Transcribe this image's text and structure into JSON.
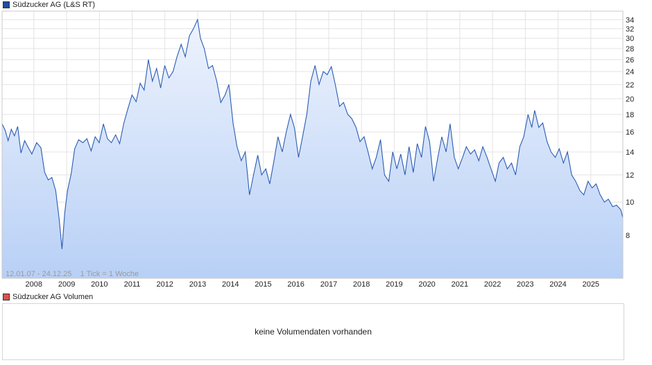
{
  "legend": {
    "price_label": "Südzucker AG (L&S RT)",
    "price_color": "#1f4e9c",
    "volume_label": "Südzucker AG Volumen",
    "volume_color": "#d9534f"
  },
  "info_text": "12.01.07 - 24.12.25    1 Tick = 1 Woche",
  "volume_message": "keine Volumendaten vorhanden",
  "chart_data": {
    "type": "area",
    "y_scale": "log",
    "ylim": [
      6.0,
      36.0
    ],
    "yticks": [
      8,
      10,
      12,
      14,
      16,
      18,
      20,
      22,
      24,
      26,
      28,
      30,
      32,
      34
    ],
    "xlim": [
      "2007-01-12",
      "2025-12-24"
    ],
    "xtick_labels": [
      "2008",
      "2009",
      "2010",
      "2011",
      "2012",
      "2013",
      "2014",
      "2015",
      "2016",
      "2017",
      "2018",
      "2019",
      "2020",
      "2021",
      "2022",
      "2023",
      "2024",
      "2025"
    ],
    "grid": true,
    "line_color": "#2a5cb4",
    "fill_top_color": "#eef3fd",
    "fill_bottom_color": "#b8d0f6",
    "series": [
      {
        "points": [
          [
            "2007-01-12",
            16.9
          ],
          [
            "2007-02-15",
            16.2
          ],
          [
            "2007-03-20",
            15.1
          ],
          [
            "2007-04-25",
            16.3
          ],
          [
            "2007-05-30",
            15.6
          ],
          [
            "2007-07-05",
            16.6
          ],
          [
            "2007-08-10",
            13.9
          ],
          [
            "2007-09-20",
            15.1
          ],
          [
            "2007-11-01",
            14.4
          ],
          [
            "2007-12-10",
            13.8
          ],
          [
            "2008-02-01",
            14.9
          ],
          [
            "2008-03-20",
            14.4
          ],
          [
            "2008-05-01",
            12.2
          ],
          [
            "2008-06-10",
            11.6
          ],
          [
            "2008-07-20",
            11.8
          ],
          [
            "2008-09-01",
            10.8
          ],
          [
            "2008-10-10",
            8.9
          ],
          [
            "2008-11-10",
            7.3
          ],
          [
            "2008-12-10",
            9.3
          ],
          [
            "2009-01-10",
            10.8
          ],
          [
            "2009-02-20",
            12.1
          ],
          [
            "2009-04-01",
            14.3
          ],
          [
            "2009-05-15",
            15.2
          ],
          [
            "2009-07-01",
            14.9
          ],
          [
            "2009-08-15",
            15.3
          ],
          [
            "2009-10-01",
            14.1
          ],
          [
            "2009-11-15",
            15.5
          ],
          [
            "2009-12-30",
            14.9
          ],
          [
            "2010-02-15",
            16.9
          ],
          [
            "2010-04-01",
            15.3
          ],
          [
            "2010-05-15",
            14.9
          ],
          [
            "2010-07-01",
            15.7
          ],
          [
            "2010-08-15",
            14.8
          ],
          [
            "2010-10-01",
            17.0
          ],
          [
            "2010-11-15",
            18.7
          ],
          [
            "2010-12-30",
            20.5
          ],
          [
            "2011-02-15",
            19.6
          ],
          [
            "2011-04-01",
            22.2
          ],
          [
            "2011-05-15",
            21.2
          ],
          [
            "2011-07-01",
            26.0
          ],
          [
            "2011-08-15",
            22.5
          ],
          [
            "2011-10-01",
            24.5
          ],
          [
            "2011-11-15",
            21.5
          ],
          [
            "2011-12-30",
            25.0
          ],
          [
            "2012-02-15",
            23.0
          ],
          [
            "2012-04-01",
            24.0
          ],
          [
            "2012-05-15",
            26.5
          ],
          [
            "2012-07-01",
            28.8
          ],
          [
            "2012-08-15",
            26.5
          ],
          [
            "2012-10-01",
            30.5
          ],
          [
            "2012-11-15",
            32.0
          ],
          [
            "2012-12-30",
            34.0
          ],
          [
            "2013-02-01",
            30.0
          ],
          [
            "2013-03-15",
            28.0
          ],
          [
            "2013-05-01",
            24.5
          ],
          [
            "2013-06-15",
            25.0
          ],
          [
            "2013-08-01",
            22.5
          ],
          [
            "2013-09-15",
            19.5
          ],
          [
            "2013-11-01",
            20.5
          ],
          [
            "2013-12-15",
            22.0
          ],
          [
            "2014-01-30",
            17.0
          ],
          [
            "2014-03-15",
            14.5
          ],
          [
            "2014-05-01",
            13.2
          ],
          [
            "2014-06-15",
            14.0
          ],
          [
            "2014-08-01",
            10.5
          ],
          [
            "2014-09-15",
            12.0
          ],
          [
            "2014-11-01",
            13.7
          ],
          [
            "2014-12-15",
            12.0
          ],
          [
            "2015-01-30",
            12.5
          ],
          [
            "2015-03-15",
            11.3
          ],
          [
            "2015-05-01",
            13.2
          ],
          [
            "2015-06-15",
            15.5
          ],
          [
            "2015-08-01",
            14.0
          ],
          [
            "2015-09-15",
            16.0
          ],
          [
            "2015-11-01",
            18.0
          ],
          [
            "2015-12-15",
            16.5
          ],
          [
            "2016-01-30",
            13.5
          ],
          [
            "2016-03-15",
            15.5
          ],
          [
            "2016-05-01",
            18.0
          ],
          [
            "2016-06-15",
            22.5
          ],
          [
            "2016-08-01",
            25.0
          ],
          [
            "2016-09-15",
            22.0
          ],
          [
            "2016-11-01",
            24.0
          ],
          [
            "2016-12-15",
            23.5
          ],
          [
            "2017-01-30",
            24.8
          ],
          [
            "2017-03-15",
            22.0
          ],
          [
            "2017-05-01",
            19.0
          ],
          [
            "2017-06-15",
            19.5
          ],
          [
            "2017-08-01",
            18.0
          ],
          [
            "2017-09-15",
            17.5
          ],
          [
            "2017-11-01",
            16.5
          ],
          [
            "2017-12-15",
            15.0
          ],
          [
            "2018-01-30",
            15.5
          ],
          [
            "2018-03-15",
            14.0
          ],
          [
            "2018-05-01",
            12.5
          ],
          [
            "2018-06-15",
            13.5
          ],
          [
            "2018-08-01",
            15.2
          ],
          [
            "2018-09-15",
            12.0
          ],
          [
            "2018-11-01",
            11.5
          ],
          [
            "2018-12-15",
            14.0
          ],
          [
            "2019-01-30",
            12.5
          ],
          [
            "2019-03-15",
            13.8
          ],
          [
            "2019-05-01",
            12.0
          ],
          [
            "2019-06-15",
            14.5
          ],
          [
            "2019-08-01",
            12.2
          ],
          [
            "2019-09-15",
            14.8
          ],
          [
            "2019-11-01",
            13.5
          ],
          [
            "2019-12-15",
            16.6
          ],
          [
            "2020-01-30",
            15.0
          ],
          [
            "2020-03-15",
            11.5
          ],
          [
            "2020-05-01",
            13.5
          ],
          [
            "2020-06-15",
            15.5
          ],
          [
            "2020-08-01",
            14.0
          ],
          [
            "2020-09-15",
            16.9
          ],
          [
            "2020-11-01",
            13.5
          ],
          [
            "2020-12-15",
            12.5
          ],
          [
            "2021-02-01",
            13.5
          ],
          [
            "2021-03-15",
            14.5
          ],
          [
            "2021-05-01",
            13.8
          ],
          [
            "2021-06-15",
            14.2
          ],
          [
            "2021-08-01",
            13.2
          ],
          [
            "2021-09-15",
            14.5
          ],
          [
            "2021-11-01",
            13.5
          ],
          [
            "2021-12-15",
            12.5
          ],
          [
            "2022-02-01",
            11.5
          ],
          [
            "2022-03-15",
            13.0
          ],
          [
            "2022-05-01",
            13.5
          ],
          [
            "2022-06-15",
            12.5
          ],
          [
            "2022-08-01",
            13.0
          ],
          [
            "2022-09-15",
            12.0
          ],
          [
            "2022-11-01",
            14.5
          ],
          [
            "2022-12-15",
            15.5
          ],
          [
            "2023-02-01",
            18.0
          ],
          [
            "2023-03-15",
            16.5
          ],
          [
            "2023-04-15",
            18.5
          ],
          [
            "2023-06-01",
            16.5
          ],
          [
            "2023-07-15",
            17.0
          ],
          [
            "2023-09-01",
            15.0
          ],
          [
            "2023-10-15",
            14.0
          ],
          [
            "2023-12-01",
            13.5
          ],
          [
            "2024-01-15",
            14.3
          ],
          [
            "2024-03-01",
            13.0
          ],
          [
            "2024-04-15",
            14.0
          ],
          [
            "2024-06-01",
            12.0
          ],
          [
            "2024-07-15",
            11.5
          ],
          [
            "2024-09-01",
            10.8
          ],
          [
            "2024-10-15",
            10.5
          ],
          [
            "2024-12-01",
            11.5
          ],
          [
            "2025-01-15",
            11.0
          ],
          [
            "2025-03-01",
            11.3
          ],
          [
            "2025-04-15",
            10.5
          ],
          [
            "2025-06-01",
            10.0
          ],
          [
            "2025-07-15",
            10.2
          ],
          [
            "2025-09-01",
            9.7
          ],
          [
            "2025-10-15",
            9.8
          ],
          [
            "2025-12-01",
            9.5
          ],
          [
            "2025-12-24",
            9.0
          ]
        ]
      }
    ]
  }
}
